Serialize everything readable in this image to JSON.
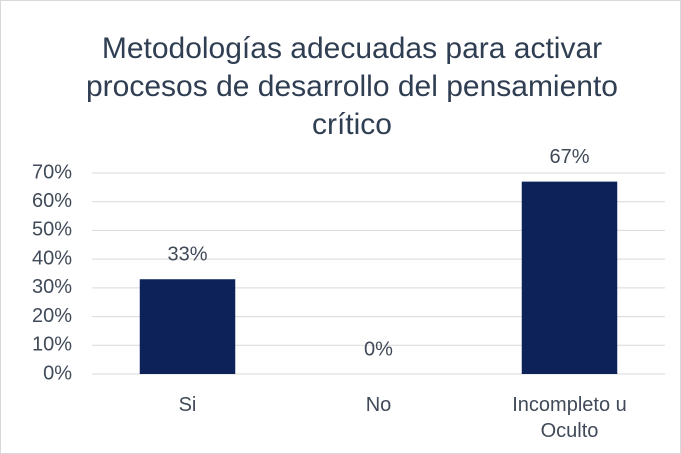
{
  "chart_data": {
    "type": "bar",
    "title": "Metodologías adecuadas para activar procesos de desarrollo del pensamiento crítico",
    "categories": [
      "Si",
      "No",
      "Incompleto u Oculto"
    ],
    "values": [
      33,
      0,
      67
    ],
    "value_labels": [
      "33%",
      "0%",
      "67%"
    ],
    "color": "#0c2259",
    "ylim": [
      0,
      70
    ],
    "yticks": [
      {
        "value": 0,
        "label": "0%"
      },
      {
        "value": 10,
        "label": "10%"
      },
      {
        "value": 20,
        "label": "20%"
      },
      {
        "value": 30,
        "label": "30%"
      },
      {
        "value": 40,
        "label": "40%"
      },
      {
        "value": 50,
        "label": "50%"
      },
      {
        "value": 60,
        "label": "60%"
      },
      {
        "value": 70,
        "label": "70%"
      }
    ],
    "grid": true
  }
}
